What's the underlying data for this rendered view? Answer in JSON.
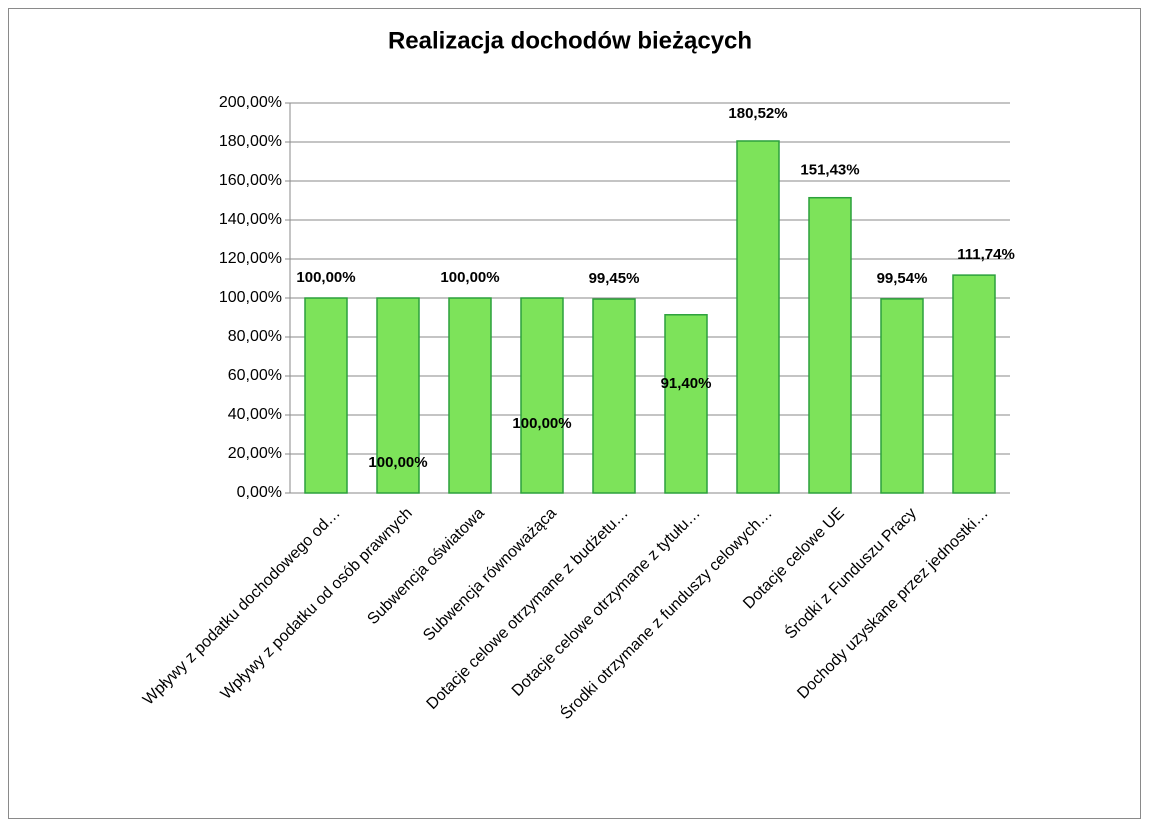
{
  "chart_data": {
    "type": "bar",
    "title": "Realizacja dochodów bieżących",
    "categories": [
      "Wpływy z podatku dochodowego od…",
      "Wpływy z podatku od osób prawnych",
      "Subwencja oświatowa",
      "Subwencja równoważąca",
      "Dotacje celowe otrzymane z budżetu…",
      "Dotacje celowe otrzymane z tytułu…",
      "Środki otrzymane z funduszy celowych…",
      "Dotacje celowe UE",
      "Środki z Funduszu Pracy",
      "Dochody uzyskane przez jednostki…"
    ],
    "values": [
      100.0,
      100.0,
      100.0,
      100.0,
      99.45,
      91.4,
      180.52,
      151.43,
      99.54,
      111.74
    ],
    "value_labels": [
      "100,00%",
      "100,00%",
      "100,00%",
      "100,00%",
      "99,45%",
      "91,40%",
      "180,52%",
      "151,43%",
      "99,54%",
      "111,74%"
    ],
    "color": "#7de35a",
    "ylim": [
      0,
      200
    ],
    "yticks": [
      {
        "value": 0,
        "label": "0,00%"
      },
      {
        "value": 20,
        "label": "20,00%"
      },
      {
        "value": 40,
        "label": "40,00%"
      },
      {
        "value": 60,
        "label": "60,00%"
      },
      {
        "value": 80,
        "label": "80,00%"
      },
      {
        "value": 100,
        "label": "100,00%"
      },
      {
        "value": 120,
        "label": "120,00%"
      },
      {
        "value": 140,
        "label": "140,00%"
      },
      {
        "value": 160,
        "label": "160,00%"
      },
      {
        "value": 180,
        "label": "180,00%"
      },
      {
        "value": 200,
        "label": "200,00%"
      }
    ],
    "grid": true
  }
}
